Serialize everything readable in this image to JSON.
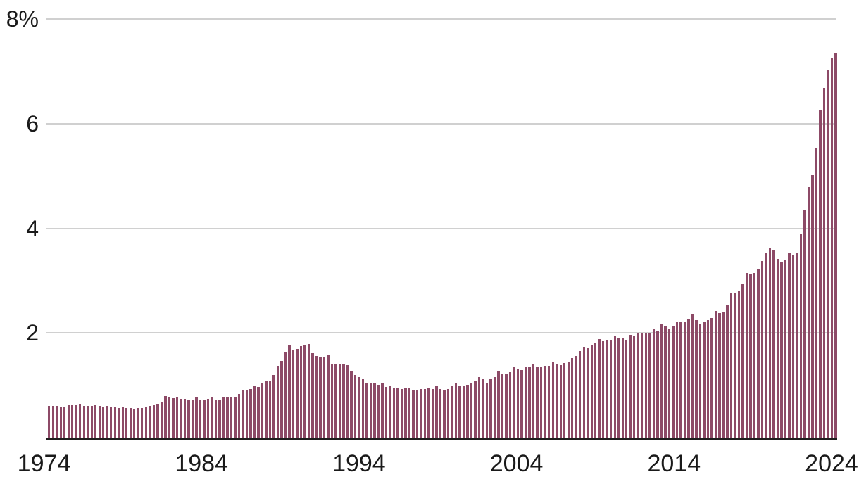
{
  "chart_data": {
    "type": "bar",
    "title": "",
    "xlabel": "",
    "ylabel": "",
    "unit": "%",
    "frequency": "quarterly",
    "start_period": "1974 Q1",
    "end_period": "2024 Q4",
    "ylim": [
      0,
      8
    ],
    "grid": "horizontal",
    "legend_position": "none",
    "y_ticks": [
      {
        "value": 8,
        "label": "8%"
      },
      {
        "value": 6,
        "label": "6"
      },
      {
        "value": 4,
        "label": "4"
      },
      {
        "value": 2,
        "label": "2"
      }
    ],
    "x_tick_labels": [
      "1974",
      "1984",
      "1994",
      "2004",
      "2014",
      "2024"
    ],
    "colors": {
      "bar": "#8d4a67",
      "grid": "#d0d0d0",
      "axis": "#1f1f1f",
      "text": "#1a1a1a",
      "background": "#ffffff"
    },
    "series": [
      {
        "name": "value",
        "values": [
          0.6,
          0.61,
          0.6,
          0.58,
          0.58,
          0.62,
          0.63,
          0.62,
          0.65,
          0.61,
          0.6,
          0.6,
          0.63,
          0.6,
          0.59,
          0.6,
          0.59,
          0.59,
          0.57,
          0.58,
          0.56,
          0.57,
          0.55,
          0.57,
          0.56,
          0.59,
          0.61,
          0.63,
          0.65,
          0.68,
          0.79,
          0.77,
          0.75,
          0.77,
          0.74,
          0.74,
          0.73,
          0.73,
          0.76,
          0.73,
          0.72,
          0.74,
          0.76,
          0.73,
          0.73,
          0.76,
          0.78,
          0.76,
          0.78,
          0.84,
          0.9,
          0.9,
          0.93,
          0.99,
          0.97,
          1.04,
          1.09,
          1.07,
          1.19,
          1.37,
          1.47,
          1.64,
          1.77,
          1.68,
          1.69,
          1.75,
          1.77,
          1.79,
          1.61,
          1.56,
          1.55,
          1.55,
          1.57,
          1.4,
          1.41,
          1.41,
          1.4,
          1.39,
          1.28,
          1.2,
          1.16,
          1.11,
          1.04,
          1.04,
          1.03,
          1.01,
          1.04,
          0.97,
          0.99,
          0.96,
          0.95,
          0.93,
          0.96,
          0.95,
          0.91,
          0.91,
          0.93,
          0.93,
          0.94,
          0.93,
          0.99,
          0.93,
          0.92,
          0.93,
          0.99,
          1.05,
          1.0,
          0.99,
          1.01,
          1.05,
          1.08,
          1.15,
          1.11,
          1.04,
          1.11,
          1.16,
          1.27,
          1.21,
          1.23,
          1.25,
          1.35,
          1.32,
          1.29,
          1.35,
          1.36,
          1.4,
          1.36,
          1.35,
          1.37,
          1.37,
          1.45,
          1.4,
          1.39,
          1.43,
          1.45,
          1.52,
          1.56,
          1.66,
          1.74,
          1.72,
          1.76,
          1.8,
          1.88,
          1.84,
          1.85,
          1.87,
          1.95,
          1.91,
          1.89,
          1.87,
          1.96,
          1.95,
          2.0,
          1.99,
          2.0,
          2.01,
          2.07,
          2.05,
          2.16,
          2.12,
          2.09,
          2.13,
          2.2,
          2.21,
          2.2,
          2.26,
          2.35,
          2.24,
          2.17,
          2.21,
          2.25,
          2.29,
          2.42,
          2.38,
          2.4,
          2.53,
          2.75,
          2.76,
          2.79,
          2.94,
          3.14,
          3.12,
          3.15,
          3.21,
          3.37,
          3.54,
          3.62,
          3.58,
          3.42,
          3.35,
          3.39,
          3.53,
          3.48,
          3.52,
          3.88,
          4.36,
          4.79,
          5.02,
          5.52,
          6.26,
          6.68,
          7.02,
          7.26,
          7.35
        ]
      }
    ]
  }
}
